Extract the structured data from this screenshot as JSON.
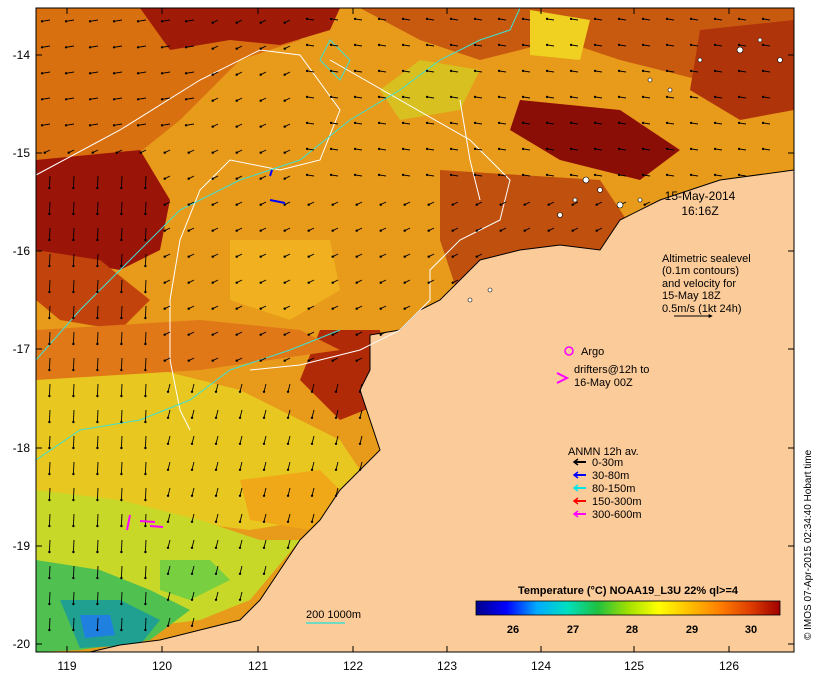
{
  "map": {
    "timestamp": {
      "line1": "15-May-2014",
      "line2": "16:16Z"
    },
    "sealevel_note": [
      "Altimetric sealevel",
      "(0.1m contours)",
      "and velocity for",
      "15-May 18Z",
      "0.5m/s (1kt 24h)"
    ],
    "argo_label": "Argo",
    "drifters_label": [
      "drifters@12h to",
      "16-May 00Z"
    ],
    "anmn": {
      "title": "ANMN 12h av.",
      "items": [
        {
          "label": "0-30m",
          "color": "#000000"
        },
        {
          "label": "30-80m",
          "color": "#0000ff"
        },
        {
          "label": "80-150m",
          "color": "#00e5e5"
        },
        {
          "label": "150-300m",
          "color": "#ff0000"
        },
        {
          "label": "300-600m",
          "color": "#ff00ff"
        }
      ]
    },
    "isobath_label": "200  1000m",
    "colorbar": {
      "title": "Temperature (°C) NOAA19_L3U 22% ql>=4",
      "ticks": [
        "26",
        "27",
        "28",
        "29",
        "30"
      ],
      "gradient": [
        "#00008b",
        "#0000ff",
        "#00aaff",
        "#00e0c0",
        "#20c040",
        "#a0e000",
        "#ffff00",
        "#ffc000",
        "#ff8000",
        "#e04000",
        "#a00000"
      ]
    },
    "x_ticks": [
      "119",
      "120",
      "121",
      "122",
      "123",
      "124",
      "125",
      "126"
    ],
    "y_ticks": [
      "-14",
      "-15",
      "-16",
      "-17",
      "-18",
      "-19",
      "-20"
    ],
    "credit": "© IMOS 07-Apr-2015 02:34:40 Hobart time",
    "colors": {
      "land": "#fccb9a",
      "argo": "#ff00ff",
      "drifter": "#ff00ff",
      "isobath": "#40e0d0",
      "contour": "#ffffff"
    }
  }
}
